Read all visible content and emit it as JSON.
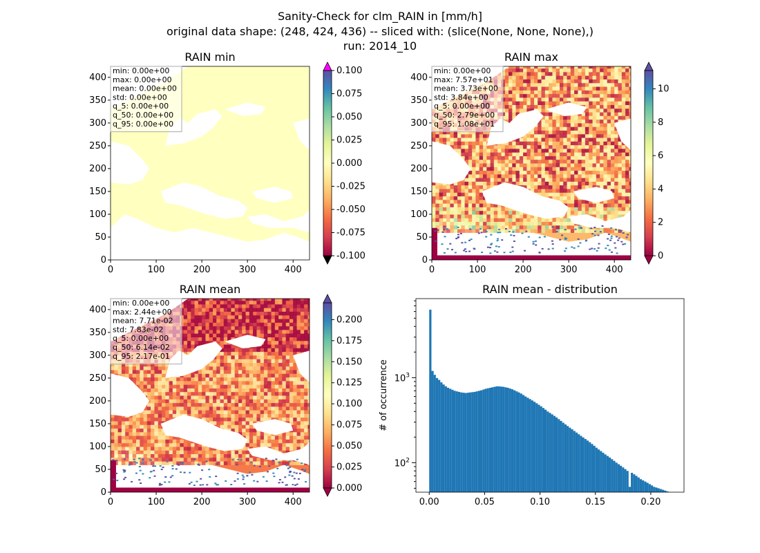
{
  "suptitle": {
    "line1": "Sanity-Check for clm_RAIN in [mm/h]",
    "line2": "original data shape: (248, 424, 436) -- sliced with: (slice(None, None, None),)",
    "line3": "run: 2014_10"
  },
  "colors": {
    "sea": "#ffffff",
    "constant_field": "#ffffbf",
    "colorbar_over": "#ff00ff",
    "colorbar_under": "#000000",
    "histogram_bar": "#1f77b4",
    "colormap": [
      "#9e0142",
      "#d53e4f",
      "#f46d43",
      "#fdae61",
      "#fee08b",
      "#ffffbf",
      "#e6f598",
      "#abdda4",
      "#66c2a5",
      "#3288bd",
      "#5e4fa2"
    ]
  },
  "maps": [
    {
      "title": "RAIN min",
      "x_ticks": [
        "0",
        "100",
        "200",
        "300",
        "400"
      ],
      "y_ticks": [
        "0",
        "50",
        "100",
        "150",
        "200",
        "250",
        "300",
        "350",
        "400"
      ],
      "colorbar_ticks": [
        "-0.100",
        "-0.075",
        "-0.050",
        "-0.025",
        "0.000",
        "0.025",
        "0.050",
        "0.075",
        "0.100"
      ],
      "stats": [
        "min: 0.00e+00",
        "max: 0.00e+00",
        "mean: 0.00e+00",
        "std: 0.00e+00",
        "q_5: 0.00e+00",
        "q_50: 0.00e+00",
        "q_95: 0.00e+00"
      ]
    },
    {
      "title": "RAIN max",
      "x_ticks": [
        "0",
        "100",
        "200",
        "300",
        "400"
      ],
      "y_ticks": [
        "0",
        "50",
        "100",
        "150",
        "200",
        "250",
        "300",
        "350",
        "400"
      ],
      "colorbar_ticks": [
        "0",
        "2",
        "4",
        "6",
        "8",
        "10"
      ],
      "stats": [
        "min: 0.00e+00",
        "max: 7.57e+01",
        "mean: 3.73e+00",
        "std: 3.84e+00",
        "q_5: 0.00e+00",
        "q_50: 2.79e+00",
        "q_95: 1.08e+01"
      ]
    },
    {
      "title": "RAIN mean",
      "x_ticks": [
        "0",
        "100",
        "200",
        "300",
        "400"
      ],
      "y_ticks": [
        "0",
        "50",
        "100",
        "150",
        "200",
        "250",
        "300",
        "350",
        "400"
      ],
      "colorbar_ticks": [
        "0.000",
        "0.025",
        "0.050",
        "0.075",
        "0.100",
        "0.125",
        "0.150",
        "0.175",
        "0.200"
      ],
      "stats": [
        "min: 0.00e+00",
        "max: 2.44e+00",
        "mean: 7.71e-02",
        "std: 7.83e-02",
        "q_5: 0.00e+00",
        "q_50: 6.14e-02",
        "q_95: 2.17e-01"
      ]
    }
  ],
  "chart_data": [
    {
      "type": "heatmap",
      "title": "RAIN min",
      "x_range": [
        0,
        436
      ],
      "y_range": [
        0,
        424
      ],
      "color_range": [
        -0.1,
        0.1
      ],
      "colorbar_extend": "both",
      "field": "constant 0.0 over land, masked over sea"
    },
    {
      "type": "heatmap",
      "title": "RAIN max",
      "x_range": [
        0,
        436
      ],
      "y_range": [
        0,
        424
      ],
      "color_range": [
        0,
        11.1
      ],
      "colorbar_extend": "both"
    },
    {
      "type": "heatmap",
      "title": "RAIN mean",
      "x_range": [
        0,
        436
      ],
      "y_range": [
        0,
        424
      ],
      "color_range": [
        0,
        0.22
      ],
      "colorbar_extend": "both"
    },
    {
      "type": "bar",
      "title": "RAIN mean - distribution",
      "ylabel": "# of occurrence",
      "yscale": "log",
      "x_ticks": [
        "0.00",
        "0.05",
        "0.10",
        "0.15",
        "0.20"
      ],
      "y_ticks": [
        "10^2",
        "10^3"
      ],
      "xlim": [
        -0.012,
        0.23
      ],
      "ylim": [
        45,
        8500
      ],
      "bin_width": 0.002,
      "bins_x": [
        0.0,
        0.002,
        0.004,
        0.006,
        0.008,
        0.01,
        0.012,
        0.014,
        0.016,
        0.018,
        0.02,
        0.022,
        0.024,
        0.026,
        0.028,
        0.03,
        0.032,
        0.034,
        0.036,
        0.038,
        0.04,
        0.042,
        0.044,
        0.046,
        0.048,
        0.05,
        0.052,
        0.054,
        0.056,
        0.058,
        0.06,
        0.062,
        0.064,
        0.066,
        0.068,
        0.07,
        0.072,
        0.074,
        0.076,
        0.078,
        0.08,
        0.082,
        0.084,
        0.086,
        0.088,
        0.09,
        0.092,
        0.094,
        0.096,
        0.098,
        0.1,
        0.102,
        0.104,
        0.106,
        0.108,
        0.11,
        0.112,
        0.114,
        0.116,
        0.118,
        0.12,
        0.122,
        0.124,
        0.126,
        0.128,
        0.13,
        0.132,
        0.134,
        0.136,
        0.138,
        0.14,
        0.142,
        0.144,
        0.146,
        0.148,
        0.15,
        0.152,
        0.154,
        0.156,
        0.158,
        0.16,
        0.162,
        0.164,
        0.166,
        0.168,
        0.17,
        0.172,
        0.174,
        0.176,
        0.178,
        0.18,
        0.182,
        0.184,
        0.186,
        0.188,
        0.19,
        0.192,
        0.194,
        0.196,
        0.198,
        0.2,
        0.202,
        0.204,
        0.206,
        0.208,
        0.21,
        0.212,
        0.214
      ],
      "counts": [
        6300,
        1200,
        1080,
        990,
        940,
        880,
        830,
        790,
        760,
        740,
        720,
        700,
        690,
        680,
        670,
        665,
        660,
        665,
        670,
        675,
        680,
        690,
        700,
        710,
        725,
        740,
        750,
        760,
        770,
        780,
        790,
        790,
        785,
        780,
        770,
        760,
        745,
        730,
        710,
        690,
        670,
        650,
        625,
        600,
        580,
        560,
        540,
        520,
        500,
        480,
        460,
        440,
        420,
        400,
        385,
        370,
        355,
        340,
        325,
        310,
        295,
        282,
        270,
        258,
        247,
        236,
        226,
        216,
        207,
        198,
        190,
        182,
        174,
        166,
        158,
        150,
        143,
        137,
        131,
        125,
        120,
        115,
        110,
        105,
        100,
        96,
        92,
        88,
        84,
        80,
        52,
        76,
        73,
        70,
        67,
        64,
        62,
        60,
        58,
        56,
        54,
        52,
        51,
        50,
        49,
        48,
        47,
        46
      ]
    }
  ]
}
